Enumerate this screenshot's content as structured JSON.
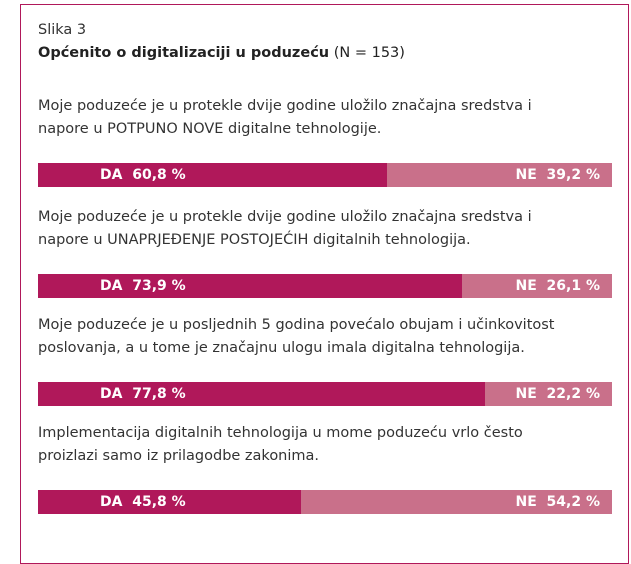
{
  "chart_data": {
    "type": "stacked-bar",
    "label": "Slika 3",
    "title": "Općenito o digitalizaciji u poduzeću",
    "subtitle": "(N = 153)",
    "categories": [
      "Moje poduzeće je u protekle dvije godine uložilo značajna sredstva i\nnapore u POTPUNO NOVE digitalne tehnologije.",
      "Moje poduzeće je u protekle dvije godine uložilo značajna sredstva i\nnapore u UNAPRJEĐENJE POSTOJEĆIH digitalnih tehnologija.",
      "Moje poduzeće je u posljednih 5 godina povećalo obujam i učinkovitost\nposlovanja, a u tome je značajnu ulogu imala digitalna tehnologija.",
      "Implementacija digitalnih tehnologija u mome poduzeću vrlo često\nproizlazi samo iz prilagodbe zakonima."
    ],
    "xlim": [
      0,
      100
    ],
    "series": [
      {
        "name": "DA",
        "color": "#b0185a",
        "values": [
          60.8,
          73.9,
          77.8,
          45.8
        ],
        "value_labels": [
          "60,8 %",
          "73,9 %",
          "77,8 %",
          "45,8 %"
        ]
      },
      {
        "name": "NE",
        "color": "#c9708a",
        "values": [
          39.2,
          26.1,
          22.2,
          54.2
        ],
        "value_labels": [
          "39,2 %",
          "26,1 %",
          "22,2 %",
          "54,2 %"
        ]
      }
    ]
  }
}
